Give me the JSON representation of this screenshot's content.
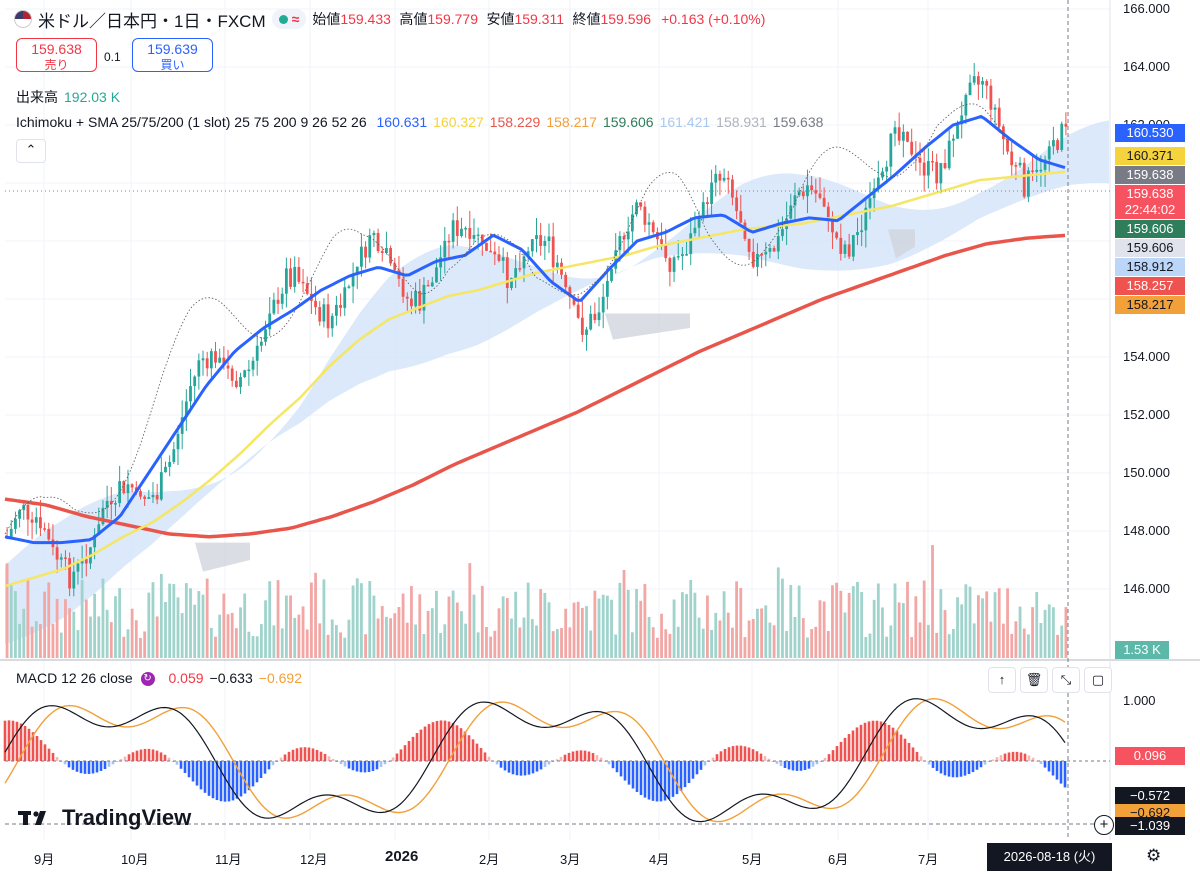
{
  "header": {
    "symbol": "米ドル／日本円・1日・FXCM",
    "wave": "≈",
    "ohlc": [
      {
        "label": "始値",
        "value": "159.433"
      },
      {
        "label": "高値",
        "value": "159.779"
      },
      {
        "label": "安値",
        "value": "159.311"
      },
      {
        "label": "終値",
        "value": "159.596"
      }
    ],
    "change": "+0.163 (+0.10%)"
  },
  "trade": {
    "sell_price": "159.638",
    "sell_label": "売り",
    "spread": "0.1",
    "buy_price": "159.639",
    "buy_label": "買い"
  },
  "volume_legend": {
    "label": "出来高",
    "value": "192.03 K"
  },
  "ichimoku_legend": {
    "name": "Ichimoku + SMA 25/75/200 (1 slot) 25 75 200 9 26 52 26",
    "values": [
      {
        "v": "160.631",
        "color": "#2962ff"
      },
      {
        "v": "160.327",
        "color": "#f5d33d"
      },
      {
        "v": "158.229",
        "color": "#e8564b"
      },
      {
        "v": "158.217",
        "color": "#f2a03a"
      },
      {
        "v": "159.606",
        "color": "#2e7d5b"
      },
      {
        "v": "161.421",
        "color": "#a9c8ef"
      },
      {
        "v": "158.931",
        "color": "#b0b3bd"
      },
      {
        "v": "159.638",
        "color": "#787b86"
      }
    ]
  },
  "collapse_icon": "chevron-up-icon",
  "price_axis": {
    "labels": [
      "166.000",
      "164.000",
      "162.000",
      "154.000",
      "152.000",
      "150.000",
      "148.000",
      "146.000"
    ],
    "badges": [
      {
        "text": "160.530",
        "bg": "#2962ff",
        "fg": "#ffffff"
      },
      {
        "text": "160.371",
        "bg": "#f5d33d",
        "fg": "#131722"
      },
      {
        "text": "159.638",
        "bg": "#787b86",
        "fg": "#ffffff"
      },
      {
        "text": "159.638",
        "bg": "#f7525f",
        "fg": "#ffffff"
      },
      {
        "text": "22:44:02",
        "bg": "#f7525f",
        "fg": "#ffffff"
      },
      {
        "text": "159.606",
        "bg": "#2e7d5b",
        "fg": "#ffffff"
      },
      {
        "text": "159.606",
        "bg": "#e0e3eb",
        "fg": "#131722"
      },
      {
        "text": "158.912",
        "bg": "#bbd6f7",
        "fg": "#131722"
      },
      {
        "text": "158.257",
        "bg": "#ef5350",
        "fg": "#ffffff"
      },
      {
        "text": "158.217",
        "bg": "#f2a03a",
        "fg": "#131722"
      }
    ],
    "volume_badge": "1.53 K"
  },
  "macd": {
    "legend_name": "MACD 12 26 close",
    "values": [
      {
        "v": "0.059",
        "color": "#f23645"
      },
      {
        "v": "−0.633",
        "color": "#131722"
      },
      {
        "v": "−0.692",
        "color": "#f2a03a"
      }
    ],
    "axis_labels": [
      "1.000"
    ],
    "badges": [
      {
        "text": "0.096",
        "bg": "#f7525f",
        "fg": "#ffffff"
      },
      {
        "text": "−0.572",
        "bg": "#131722",
        "fg": "#ffffff"
      },
      {
        "text": "−0.692",
        "bg": "#f2a03a",
        "fg": "#131722"
      },
      {
        "text": "−1.039",
        "bg": "#131722",
        "fg": "#ffffff"
      }
    ],
    "toolbar": [
      "arrow-up-icon",
      "trash-icon",
      "collapse-icon",
      "maximize-icon"
    ]
  },
  "time_axis": {
    "labels": [
      "9月",
      "10月",
      "11月",
      "12月",
      "2026",
      "2月",
      "3月",
      "4月",
      "5月",
      "6月",
      "7月"
    ],
    "crosshair_date": "2026-08-18 (火)"
  },
  "brand": "TradingView",
  "colors": {
    "up": "#26a69a",
    "down": "#ef5350",
    "sma25": "#2962ff",
    "sma75": "#f5e663",
    "sma200": "#e8564b",
    "cloud": "#cfe2f8"
  },
  "chart_data": {
    "type": "candlestick",
    "title": "",
    "ylim": [
      145,
      166
    ],
    "y_ticks": [
      146,
      148,
      150,
      152,
      154,
      162,
      164,
      166
    ],
    "x_labels": [
      "9月",
      "10月",
      "11月",
      "12月",
      "2026",
      "2月",
      "3月",
      "4月",
      "5月",
      "6月",
      "7月"
    ],
    "series": [
      {
        "name": "SMA 25",
        "values": [
          147.8,
          147.6,
          147.6,
          147.7,
          148.5,
          150,
          151.5,
          153,
          154.2,
          155,
          155.6,
          156.3,
          156.8,
          157.1,
          156.8,
          157.3,
          157.5,
          158.2,
          157.7,
          156.6,
          155.9,
          157,
          158,
          158.3,
          158.8,
          158.9,
          158.3,
          158.6,
          158.8,
          158.7,
          159.5,
          160.3,
          161.2,
          162,
          162.3,
          161.5,
          160.8,
          160.5
        ]
      },
      {
        "name": "SMA 75",
        "values": [
          146.1,
          146.4,
          146.7,
          147.2,
          147.8,
          148.3,
          149,
          149.8,
          150.7,
          151.7,
          152.6,
          153.7,
          154.6,
          155.3,
          155.7,
          156.1,
          156.3,
          156.6,
          156.9,
          157.1,
          157.3,
          157.5,
          157.8,
          158,
          158.2,
          158.4,
          158.5,
          158.6,
          158.8,
          159,
          159.2,
          159.5,
          159.8,
          160.1,
          160.2,
          160.3,
          160.4
        ]
      },
      {
        "name": "SMA 200",
        "values": [
          149.1,
          148.9,
          148.5,
          148.2,
          147.9,
          147.8,
          147.9,
          148.1,
          148.5,
          149,
          149.6,
          150.3,
          150.9,
          151.5,
          152.1,
          152.8,
          153.5,
          154.2,
          154.8,
          155.4,
          156,
          156.5,
          157,
          157.5,
          157.9,
          158.1,
          158.2
        ]
      }
    ],
    "volume_last": "1.53 K"
  }
}
